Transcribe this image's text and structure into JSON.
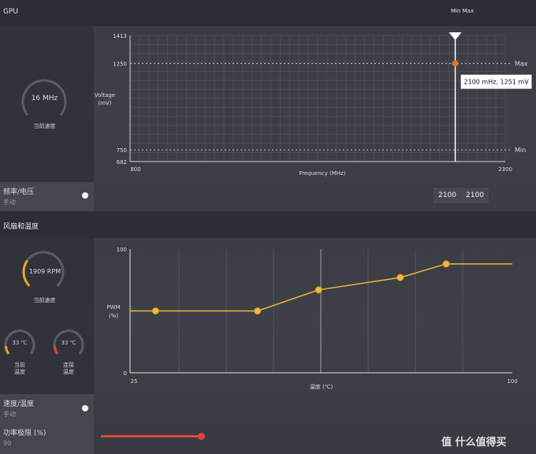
{
  "header": {
    "title": "GPU",
    "min_max_label": "Min Max"
  },
  "gpu_gauge": {
    "value_text": "16 MHz",
    "label": "当前速度"
  },
  "vf_chart": {
    "ylabel_line1": "Voltage",
    "ylabel_line2": "(mV)",
    "xlabel": "Frequency (MHz)",
    "y_ticks": [
      "1413",
      "1250",
      "750",
      "682"
    ],
    "x_ticks": [
      "800",
      "2300"
    ],
    "max_label": "Max",
    "min_label": "Min",
    "tooltip": "2100 mHz, 1251 mV"
  },
  "freq_voltage": {
    "label": "频率/电压",
    "mode": "手动",
    "val1": "2100",
    "val2": "2100"
  },
  "fan_section": {
    "title": "风扇和温度"
  },
  "fan_gauge": {
    "value_text": "1909 RPM",
    "label": "当前速度",
    "fill_fraction": 0.3
  },
  "temp_gauges": [
    {
      "value_text": "33 ℃",
      "label_line1": "当前",
      "label_line2": "温度",
      "color": "#f0a21a"
    },
    {
      "value_text": "33 ℃",
      "label_line1": "连接",
      "label_line2": "温度",
      "color": "#e0443a"
    }
  ],
  "fan_chart": {
    "ylabel_line1": "PWM",
    "ylabel_line2": "(%)",
    "xlabel": "温度 (℃)",
    "y_ticks": [
      "100",
      "0"
    ],
    "x_ticks": [
      "25",
      "100"
    ]
  },
  "speed_temp": {
    "label": "速度/温度",
    "mode": "手动"
  },
  "power_limit": {
    "label": "功率极限 (%)",
    "value": "90"
  },
  "watermark": "值 什么值得买",
  "colors": {
    "accent_orange": "#f0a21a",
    "point_orange": "#e8731a",
    "slider_red": "#e0443a"
  },
  "chart_data": [
    {
      "type": "line",
      "title": "",
      "xlabel": "Frequency (MHz)",
      "ylabel": "Voltage (mV)",
      "xlim": [
        800,
        2300
      ],
      "ylim": [
        682,
        1413
      ],
      "grid": true,
      "lines": {
        "max": 1250,
        "min": 750,
        "selected_x": 2100
      },
      "points": [
        {
          "x": 2100,
          "y": 1251
        }
      ]
    },
    {
      "type": "line",
      "title": "",
      "xlabel": "温度 (℃)",
      "ylabel": "PWM (%)",
      "xlim": [
        25,
        100
      ],
      "ylim": [
        0,
        100
      ],
      "grid": true,
      "series": [
        {
          "x": [
            25,
            30,
            50,
            62,
            78,
            87,
            100
          ],
          "y": [
            50,
            50,
            50,
            67,
            77,
            88,
            88
          ]
        }
      ],
      "markers_x": [
        30,
        50,
        62,
        78,
        87
      ]
    }
  ]
}
